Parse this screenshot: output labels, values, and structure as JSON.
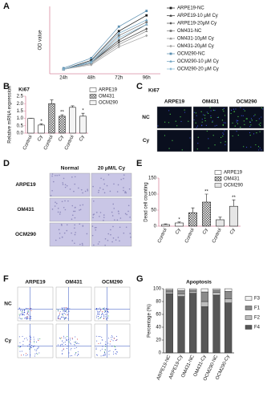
{
  "panel_labels": [
    "A",
    "B",
    "C",
    "D",
    "E",
    "F",
    "G"
  ],
  "chart_data": [
    {
      "type": "line",
      "y_label": "OD value",
      "axis_color": "#d98aa0",
      "categories": [
        "24h",
        "48h",
        "72h",
        "96h"
      ],
      "ylim": [
        0,
        3
      ],
      "series": [
        {
          "name": "ARPE19-NC",
          "color": "#1a1a1a",
          "marker": "square",
          "values": [
            0.2,
            0.6,
            1.9,
            2.6
          ]
        },
        {
          "name": "ARPE19-10 μM Cy",
          "color": "#333333",
          "marker": "triangle",
          "values": [
            0.2,
            0.5,
            1.5,
            2.2
          ]
        },
        {
          "name": "ARPE19-20μM Cy",
          "color": "#4d4d4d",
          "marker": "diamond",
          "values": [
            0.2,
            0.5,
            1.4,
            2.0
          ]
        },
        {
          "name": "OM431-NC",
          "color": "#777777",
          "marker": "square",
          "values": [
            0.2,
            0.5,
            1.7,
            2.3
          ]
        },
        {
          "name": "OM431-10μM Cy",
          "color": "#8c8c8c",
          "marker": "triangle",
          "values": [
            0.2,
            0.45,
            1.3,
            1.9
          ]
        },
        {
          "name": "OM431-20μM Cy",
          "color": "#a0a0a0",
          "marker": "diamond",
          "values": [
            0.2,
            0.4,
            1.2,
            1.7
          ]
        },
        {
          "name": "OCM290-NC",
          "color": "#5b8fb0",
          "marker": "square",
          "values": [
            0.25,
            0.7,
            2.1,
            2.8
          ]
        },
        {
          "name": "OCM290-10 μM Cy",
          "color": "#6fa3c2",
          "marker": "triangle",
          "values": [
            0.2,
            0.55,
            1.8,
            2.4
          ]
        },
        {
          "name": "OCM290-20 μM Cy",
          "color": "#86b6d2",
          "marker": "diamond",
          "values": [
            0.2,
            0.5,
            1.6,
            2.2
          ]
        }
      ]
    },
    {
      "type": "bar",
      "title": "Ki67",
      "y_label": "Relative mRNA expression",
      "categories": [
        "Control",
        "Cy",
        "Control",
        "Cy",
        "Control",
        "Cy"
      ],
      "ylim": [
        0,
        2.5
      ],
      "yticks": [
        {
          "value": 0,
          "label": "0.0"
        },
        {
          "value": 0.5,
          "label": "0.5"
        },
        {
          "value": 1,
          "label": "1.0"
        },
        {
          "value": 1.5,
          "label": "1.5"
        },
        {
          "value": 2,
          "label": "2.0"
        },
        {
          "value": 2.5,
          "label": "2.5"
        }
      ],
      "significance": [
        null,
        "*",
        null,
        "**",
        null,
        "*"
      ],
      "series": [
        {
          "name": "ARPE19",
          "color": "#ffffff",
          "values": [
            1.0,
            0.55,
            null,
            null,
            null,
            null
          ],
          "errors": [
            0,
            0.08,
            null,
            null,
            null,
            null
          ]
        },
        {
          "name": "OM431",
          "color": "#ffffff",
          "hatch": "checker",
          "values": [
            null,
            null,
            2.0,
            1.15,
            null,
            null
          ],
          "errors": [
            null,
            null,
            0.25,
            0.1,
            null,
            null
          ]
        },
        {
          "name": "OCM290",
          "color": "#f4f4f4",
          "values": [
            null,
            null,
            null,
            null,
            1.75,
            1.15
          ],
          "errors": [
            null,
            null,
            null,
            null,
            0.1,
            0.2
          ]
        }
      ]
    },
    {
      "type": "bar",
      "y_label": "Dead cell counting",
      "categories": [
        "Control",
        "Cy",
        "Control",
        "Cy",
        "Control",
        "Cy"
      ],
      "ylim": [
        0,
        150
      ],
      "yticks": [
        0,
        50,
        100,
        150
      ],
      "significance": [
        null,
        "*",
        null,
        "**",
        null,
        "**"
      ],
      "series": [
        {
          "name": "ARPE19",
          "color": "#ffffff",
          "values": [
            5,
            10,
            null,
            null,
            null,
            null
          ],
          "errors": [
            2,
            3,
            null,
            null,
            null,
            null
          ]
        },
        {
          "name": "OM431",
          "color": "#ffffff",
          "hatch": "checker",
          "values": [
            null,
            null,
            42,
            75,
            null,
            null
          ],
          "errors": [
            null,
            null,
            15,
            25,
            null,
            null
          ]
        },
        {
          "name": "OCM290",
          "color": "#e6e6e6",
          "values": [
            null,
            null,
            null,
            null,
            20,
            62
          ],
          "errors": [
            null,
            null,
            null,
            null,
            8,
            20
          ]
        }
      ]
    },
    {
      "type": "stacked",
      "title": "Apoptosis",
      "y_label": "Percentage (%)",
      "categories": [
        "ARPE19-NC",
        "ARPE19-Cy",
        "OM431-NC",
        "OM431-Cy",
        "OCM290-NC",
        "OCM290-Cy"
      ],
      "ylim": [
        0,
        100
      ],
      "yticks": [
        0,
        20,
        40,
        60,
        80,
        100
      ],
      "series": [
        {
          "name": "F3",
          "color": "#f2f2f2",
          "values": [
            2,
            3,
            2,
            5,
            2,
            4
          ]
        },
        {
          "name": "F1",
          "color": "#8a8a8a",
          "values": [
            3,
            5,
            2,
            15,
            4,
            12
          ]
        },
        {
          "name": "F2",
          "color": "#bdbdbd",
          "values": [
            3,
            4,
            3,
            8,
            4,
            6
          ]
        },
        {
          "name": "F4",
          "color": "#575757",
          "values": [
            92,
            88,
            93,
            72,
            90,
            78
          ]
        }
      ]
    }
  ],
  "panel_c": {
    "title": "Ki67",
    "columns": [
      "ARPE19",
      "OM431",
      "OCM290"
    ],
    "rows": [
      "NC",
      "Cy"
    ]
  },
  "panel_d": {
    "columns": [
      "Normal",
      "20 μM/L Cy"
    ],
    "rows": [
      "ARPE19",
      "OM431",
      "OCM290"
    ]
  },
  "panel_f": {
    "columns": [
      "ARPE19",
      "OM431",
      "OCM290"
    ],
    "rows": [
      "NC",
      "Cy"
    ]
  }
}
